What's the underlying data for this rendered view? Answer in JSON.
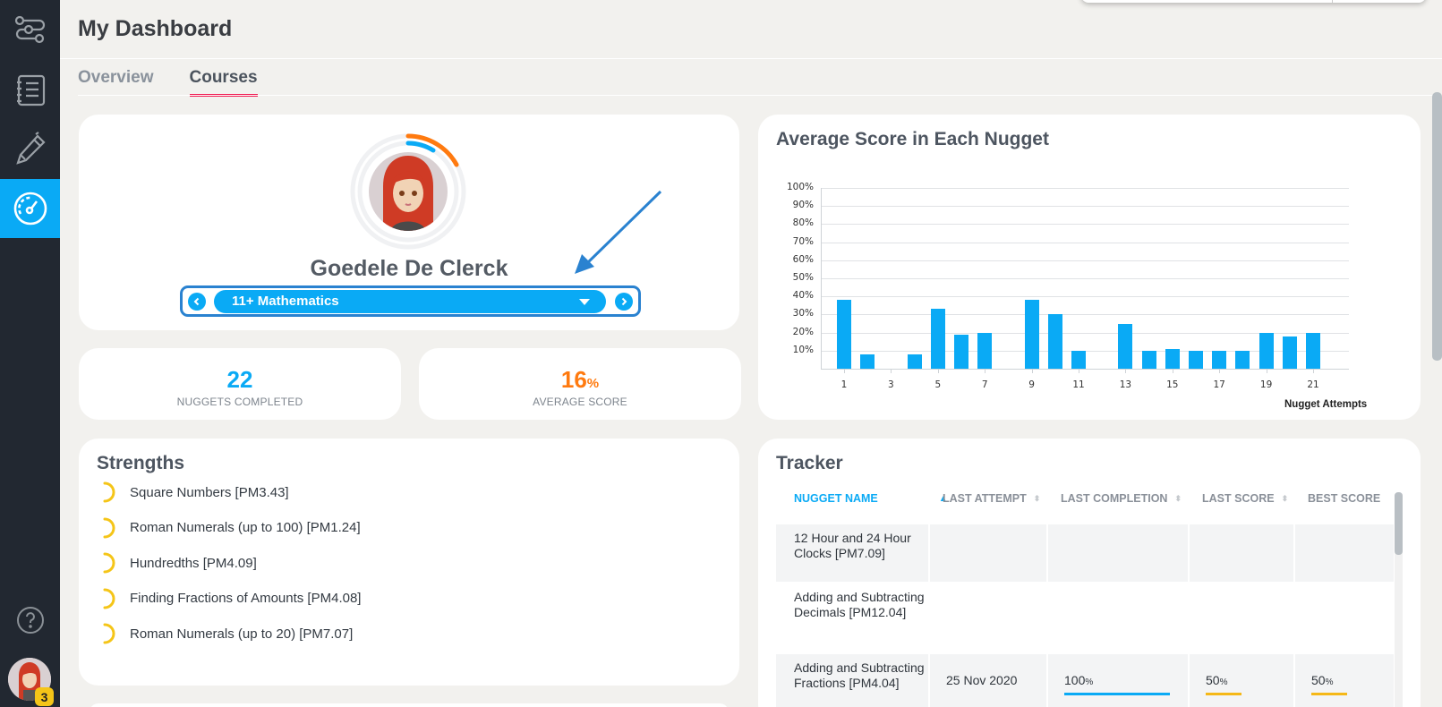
{
  "sidebar": {
    "items": [
      {
        "name": "workflow",
        "icon": "workflow-icon",
        "active": false
      },
      {
        "name": "courses-list",
        "icon": "notebook-list-icon",
        "active": false
      },
      {
        "name": "editor",
        "icon": "pencil-icon",
        "active": false
      },
      {
        "name": "dashboard",
        "icon": "speedometer-icon",
        "active": true
      }
    ],
    "help_icon": "help-circle-icon",
    "user_badge": "3"
  },
  "header": {
    "title": "My Dashboard",
    "tabs": [
      {
        "label": "Overview",
        "active": false
      },
      {
        "label": "Courses",
        "active": true
      }
    ]
  },
  "profile": {
    "name": "Goedele De Clerck",
    "course": "11+ Mathematics",
    "ring_outer_color": "#ff7a0f",
    "ring_inner_color": "#0aaaf5"
  },
  "stats": {
    "nuggets_completed": {
      "value": "22",
      "label": "NUGGETS COMPLETED",
      "color": "#0aaaf5"
    },
    "average_score": {
      "value": "16",
      "unit": "%",
      "label": "AVERAGE SCORE",
      "color": "#ff7a0f"
    }
  },
  "chart_card": {
    "title": "Average Score in Each Nugget"
  },
  "chart_data": {
    "type": "bar",
    "title": "Average Score in Each Nugget",
    "xlabel": "Nugget Attempts",
    "ylabel": "",
    "categories": [
      1,
      2,
      3,
      4,
      5,
      6,
      7,
      8,
      9,
      10,
      11,
      12,
      13,
      14,
      15,
      16,
      17,
      18,
      19,
      20,
      21
    ],
    "values": [
      38,
      8,
      0,
      8,
      33,
      19,
      20,
      0,
      38,
      30,
      10,
      0,
      25,
      10,
      11,
      10,
      10,
      10,
      20,
      18,
      20
    ],
    "x_tick_labels": [
      "1",
      "3",
      "5",
      "7",
      "9",
      "11",
      "13",
      "15",
      "17",
      "19",
      "21"
    ],
    "y_tick_labels": [
      "10%",
      "20%",
      "30%",
      "40%",
      "50%",
      "60%",
      "70%",
      "80%",
      "90%",
      "100%"
    ],
    "ylim": [
      0,
      100
    ],
    "grid": true,
    "bar_color": "#0aaaf5"
  },
  "strengths": {
    "title": "Strengths",
    "items": [
      "Square Numbers [PM3.43]",
      "Roman Numerals (up to 100) [PM1.24]",
      "Hundredths [PM4.09]",
      "Finding Fractions of Amounts [PM4.08]",
      "Roman Numerals (up to 20) [PM7.07]"
    ]
  },
  "tracker": {
    "title": "Tracker",
    "columns": [
      "NUGGET NAME",
      "LAST ATTEMPT",
      "LAST COMPLETION",
      "LAST SCORE",
      "BEST SCORE"
    ],
    "rows": [
      {
        "name": "12 Hour and 24 Hour Clocks [PM7.09]",
        "last_attempt": "",
        "last_completion": "",
        "last_score": "",
        "best_score": ""
      },
      {
        "name": "Adding and Subtracting Decimals [PM12.04]",
        "last_attempt": "",
        "last_completion": "",
        "last_score": "",
        "best_score": ""
      },
      {
        "name": "Adding and Subtracting Fractions [PM4.04]",
        "last_attempt": "25 Nov 2020",
        "last_completion": "100",
        "last_score": "50",
        "best_score": "50"
      }
    ],
    "pct": "%"
  }
}
